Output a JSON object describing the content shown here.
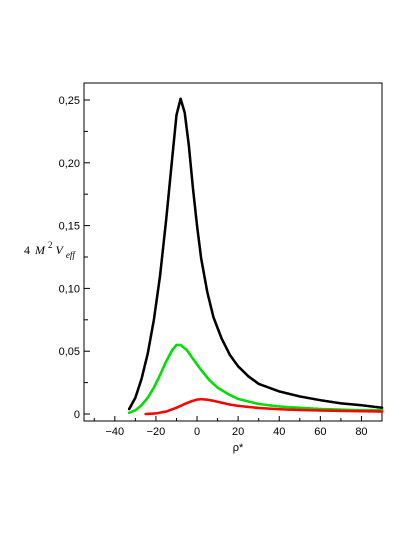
{
  "chart_data": {
    "type": "scatter",
    "title": "",
    "xlabel": "ρ*",
    "ylabel_parts": {
      "coef": "4",
      "M": "M",
      "exp": "2",
      "V": "V",
      "sub": "eff"
    },
    "xlim": [
      -55,
      90
    ],
    "ylim": [
      0,
      0.255
    ],
    "xticks": [
      -40,
      -20,
      0,
      20,
      40,
      60,
      80
    ],
    "yticks": [
      0,
      0.05,
      0.1,
      0.15,
      0.2,
      0.25
    ],
    "xtick_labels": [
      "−40",
      "−20",
      "0",
      "20",
      "40",
      "60",
      "80"
    ],
    "ytick_labels": [
      "0",
      "0,05",
      "0,10",
      "0,15",
      "0,20",
      "0,25"
    ],
    "grid": false,
    "legend": "none",
    "series": [
      {
        "color": "#000000",
        "points": [
          [
            -33,
            0.004
          ],
          [
            -30,
            0.013
          ],
          [
            -27,
            0.028
          ],
          [
            -24,
            0.048
          ],
          [
            -21,
            0.075
          ],
          [
            -18,
            0.11
          ],
          [
            -15,
            0.155
          ],
          [
            -12,
            0.205
          ],
          [
            -10,
            0.238
          ],
          [
            -8,
            0.251
          ],
          [
            -6,
            0.24
          ],
          [
            -4,
            0.214
          ],
          [
            -2,
            0.18
          ],
          [
            0,
            0.15
          ],
          [
            2,
            0.124
          ],
          [
            5,
            0.097
          ],
          [
            8,
            0.077
          ],
          [
            12,
            0.06
          ],
          [
            16,
            0.047
          ],
          [
            20,
            0.038
          ],
          [
            25,
            0.03
          ],
          [
            30,
            0.024
          ],
          [
            40,
            0.018
          ],
          [
            50,
            0.014
          ],
          [
            60,
            0.011
          ],
          [
            70,
            0.0085
          ],
          [
            80,
            0.007
          ],
          [
            90,
            0.005
          ]
        ]
      },
      {
        "color": "#00dd00",
        "points": [
          [
            -33,
            0.001
          ],
          [
            -30,
            0.003
          ],
          [
            -27,
            0.007
          ],
          [
            -24,
            0.013
          ],
          [
            -21,
            0.021
          ],
          [
            -18,
            0.031
          ],
          [
            -15,
            0.042
          ],
          [
            -12,
            0.051
          ],
          [
            -10,
            0.055
          ],
          [
            -8,
            0.055
          ],
          [
            -5,
            0.051
          ],
          [
            -2,
            0.044
          ],
          [
            2,
            0.035
          ],
          [
            6,
            0.027
          ],
          [
            10,
            0.021
          ],
          [
            15,
            0.016
          ],
          [
            20,
            0.012
          ],
          [
            30,
            0.008
          ],
          [
            40,
            0.006
          ],
          [
            50,
            0.005
          ],
          [
            60,
            0.004
          ],
          [
            70,
            0.0035
          ],
          [
            80,
            0.003
          ],
          [
            90,
            0.003
          ]
        ]
      },
      {
        "color": "#ff0000",
        "points": [
          [
            -25,
            0.0
          ],
          [
            -20,
            0.0005
          ],
          [
            -15,
            0.002
          ],
          [
            -10,
            0.005
          ],
          [
            -6,
            0.008
          ],
          [
            -3,
            0.01
          ],
          [
            0,
            0.0115
          ],
          [
            2,
            0.0118
          ],
          [
            5,
            0.0114
          ],
          [
            8,
            0.0105
          ],
          [
            12,
            0.009
          ],
          [
            16,
            0.0075
          ],
          [
            20,
            0.0065
          ],
          [
            30,
            0.0048
          ],
          [
            40,
            0.0038
          ],
          [
            50,
            0.0032
          ],
          [
            60,
            0.0028
          ],
          [
            70,
            0.0025
          ],
          [
            80,
            0.0022
          ],
          [
            90,
            0.002
          ]
        ]
      }
    ]
  }
}
